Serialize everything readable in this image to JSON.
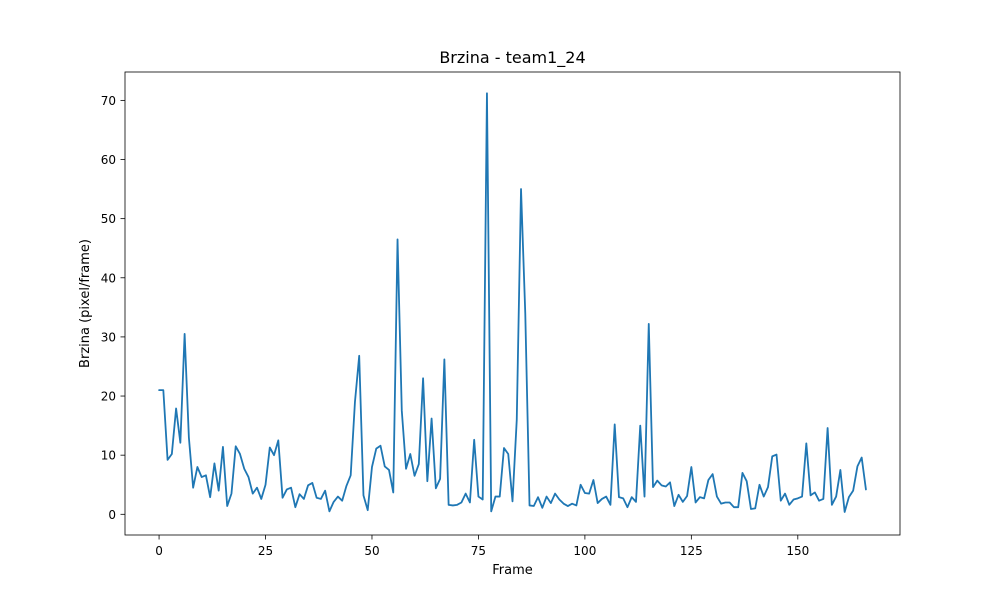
{
  "chart_data": {
    "type": "line",
    "title": "Brzina - team1_24",
    "xlabel": "Frame",
    "ylabel": "Brzina (pixel/frame)",
    "xlim": [
      -8,
      174
    ],
    "ylim": [
      -3.5,
      74.8
    ],
    "xticks": [
      0,
      25,
      50,
      75,
      100,
      125,
      150
    ],
    "yticks": [
      0,
      10,
      20,
      30,
      40,
      50,
      60,
      70
    ],
    "grid": false,
    "legend": "none",
    "series": [
      {
        "color": "#1f77b4",
        "values": [
          21.0,
          21.0,
          9.2,
          10.2,
          17.9,
          12.1,
          30.5,
          13.0,
          4.5,
          8.0,
          6.3,
          6.6,
          2.9,
          8.6,
          4.0,
          11.4,
          1.4,
          3.5,
          11.5,
          10.2,
          7.7,
          6.3,
          3.5,
          4.5,
          2.6,
          5.0,
          11.3,
          10.0,
          12.5,
          2.8,
          4.2,
          4.5,
          1.2,
          3.4,
          2.6,
          4.9,
          5.3,
          2.8,
          2.6,
          4.0,
          0.5,
          2.1,
          3.0,
          2.3,
          4.8,
          6.6,
          19.0,
          26.8,
          3.2,
          0.7,
          8.0,
          11.1,
          11.6,
          8.1,
          7.5,
          3.7,
          46.5,
          17.5,
          7.7,
          10.2,
          6.5,
          8.5,
          23.0,
          5.6,
          16.2,
          4.4,
          6.0,
          26.2,
          1.6,
          1.5,
          1.6,
          2.0,
          3.5,
          2.0,
          12.6,
          3.0,
          2.5,
          71.2,
          0.5,
          3.0,
          3.0,
          11.2,
          10.2,
          2.2,
          16.0,
          55.0,
          34.0,
          1.5,
          1.4,
          2.9,
          1.1,
          3.0,
          1.9,
          3.5,
          2.5,
          1.8,
          1.4,
          1.8,
          1.5,
          5.0,
          3.6,
          3.5,
          5.8,
          1.9,
          2.6,
          3.0,
          1.6,
          15.2,
          2.9,
          2.7,
          1.2,
          2.9,
          2.1,
          15.0,
          3.0,
          32.2,
          4.6,
          5.7,
          4.9,
          4.7,
          5.4,
          1.4,
          3.3,
          2.1,
          3.1,
          8.0,
          2.0,
          2.9,
          2.7,
          5.8,
          6.8,
          3.0,
          1.8,
          2.0,
          2.0,
          1.2,
          1.2,
          7.0,
          5.6,
          0.9,
          1.0,
          5.0,
          3.0,
          4.6,
          9.8,
          10.1,
          2.3,
          3.5,
          1.6,
          2.5,
          2.7,
          3.0,
          12.0,
          3.2,
          3.7,
          2.3,
          2.6,
          14.6,
          1.6,
          3.0,
          7.5,
          0.4,
          2.9,
          4.0,
          8.1,
          9.6,
          4.2
        ]
      }
    ]
  }
}
